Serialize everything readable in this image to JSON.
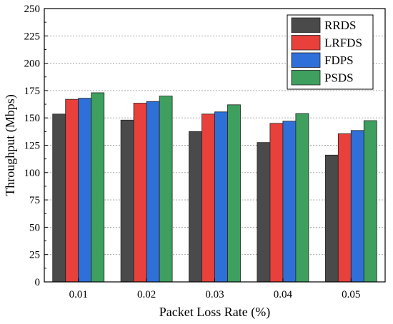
{
  "chart_data": {
    "type": "bar",
    "title": "",
    "xlabel": "Packet Loss Rate (%)",
    "ylabel": "Throughput (Mbps)",
    "categories": [
      "0.01",
      "0.02",
      "0.03",
      "0.04",
      "0.05"
    ],
    "series": [
      {
        "name": "RRDS",
        "color": "#4a4a4a",
        "values": [
          153.5,
          148,
          137.5,
          127.5,
          116
        ]
      },
      {
        "name": "LRFDS",
        "color": "#e8403a",
        "values": [
          167,
          163.5,
          153.5,
          145,
          135.5
        ]
      },
      {
        "name": "FDPS",
        "color": "#2f6fd8",
        "values": [
          168,
          165,
          155.5,
          147,
          138.5
        ]
      },
      {
        "name": "PSDS",
        "color": "#3f9f5f",
        "values": [
          173,
          170,
          162,
          154,
          147.5
        ]
      }
    ],
    "ylim": [
      0,
      250
    ],
    "yticks": [
      0,
      25,
      50,
      75,
      100,
      125,
      150,
      175,
      200,
      225,
      250
    ],
    "ytick_labels": [
      "0",
      "25",
      "50",
      "75",
      "100",
      "125",
      "150",
      "175",
      "200",
      "225",
      "250"
    ],
    "grid": "horizontal dotted",
    "legend_position": "top-right"
  }
}
